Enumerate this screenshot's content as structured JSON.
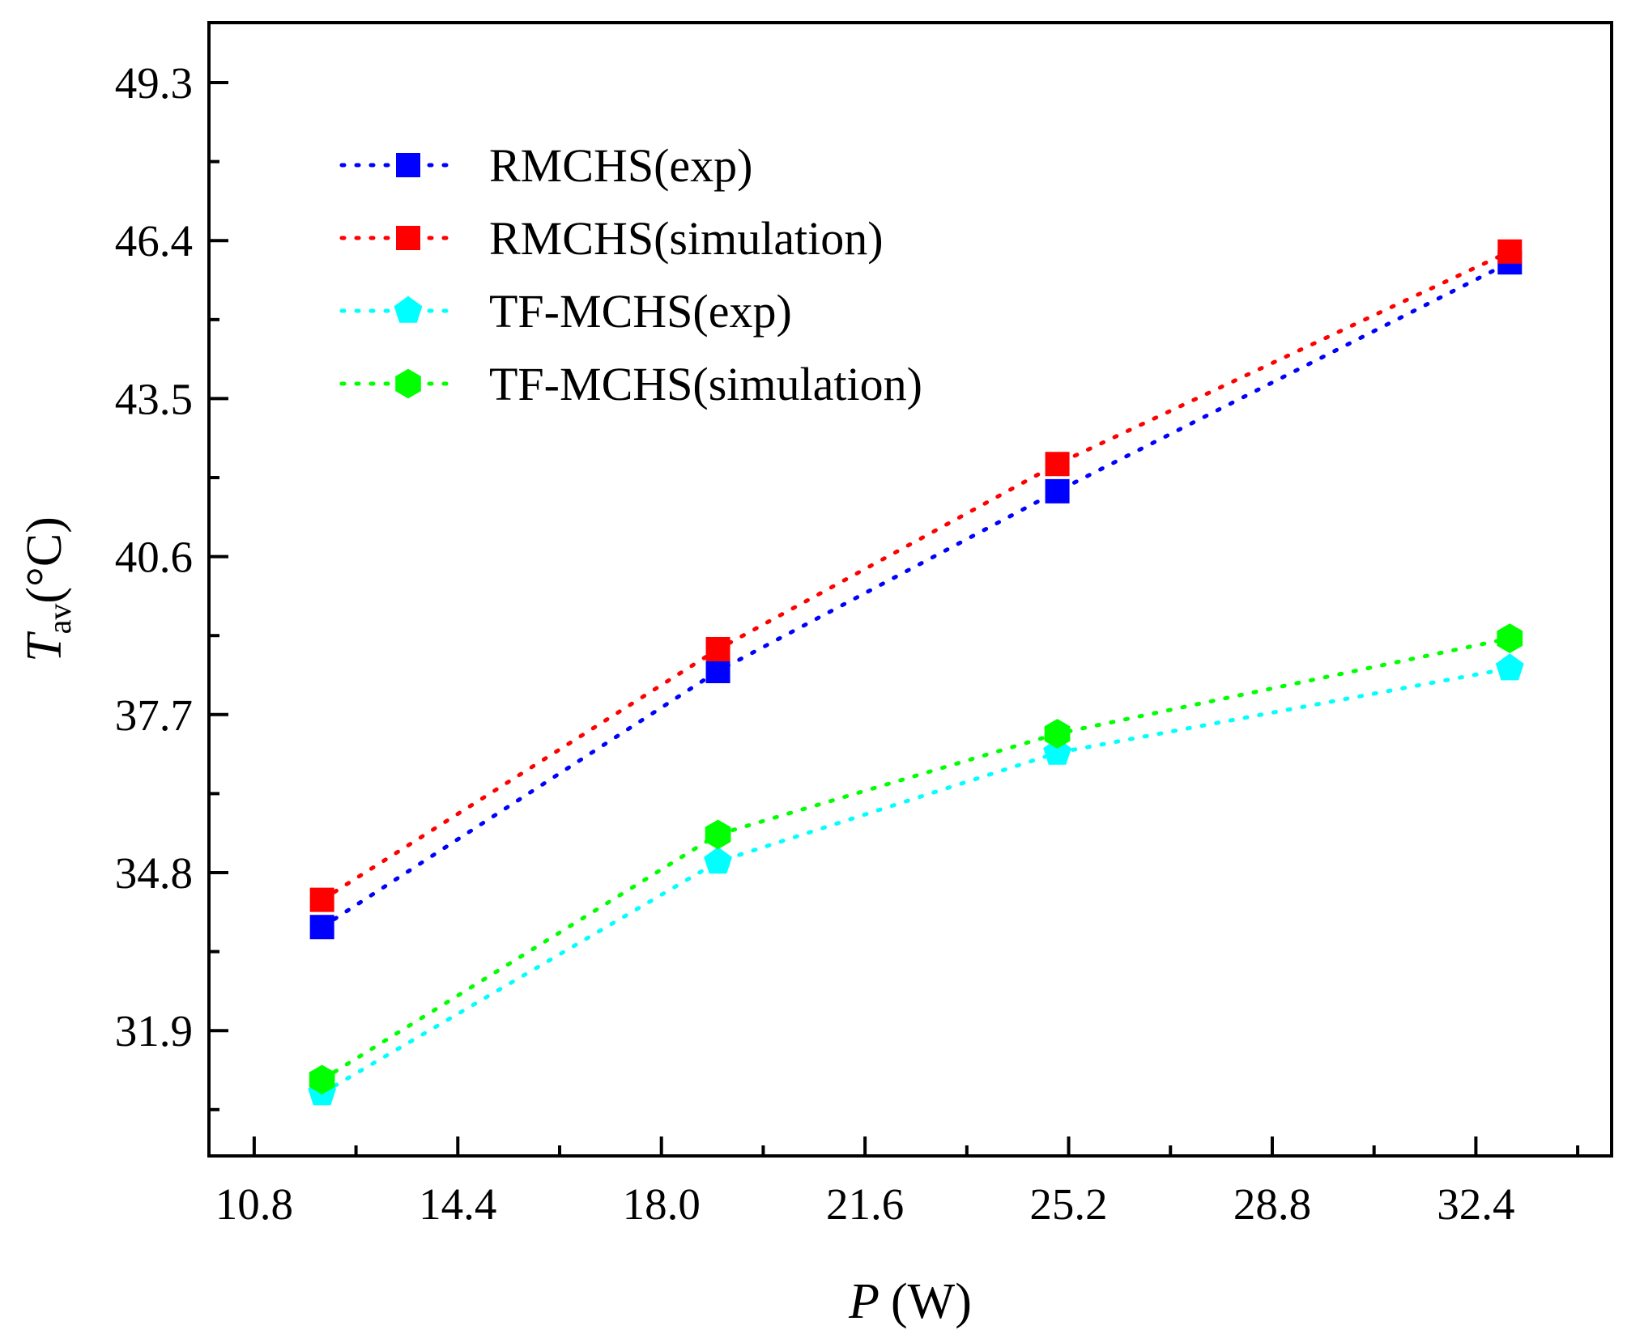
{
  "chart_data": {
    "type": "line",
    "xlabel": "P",
    "xlabel_unit": "(W)",
    "ylabel_symbol": "T",
    "ylabel_sub": "av",
    "ylabel_unit": "(°C)",
    "xlim": [
      10,
      34.8
    ],
    "ylim": [
      29.6,
      50.4
    ],
    "xticks": [
      10.8,
      14.4,
      18.0,
      21.6,
      25.2,
      28.8,
      32.4
    ],
    "xtick_labels": [
      "10.8",
      "14.4",
      "18.0",
      "21.6",
      "25.2",
      "28.8",
      "32.4"
    ],
    "yticks": [
      31.9,
      34.8,
      37.7,
      40.6,
      43.5,
      46.4,
      49.3
    ],
    "ytick_labels": [
      "31.9",
      "34.8",
      "37.7",
      "40.6",
      "43.5",
      "46.4",
      "49.3"
    ],
    "x": [
      12,
      19,
      25,
      33
    ],
    "legend_position": "top-left",
    "series": [
      {
        "name": "RMCHS(exp)",
        "color": "#0000ff",
        "marker": "square",
        "values": [
          33.8,
          38.5,
          41.8,
          46.0
        ]
      },
      {
        "name": "RMCHS(simulation)",
        "color": "#ff0000",
        "marker": "square",
        "values": [
          34.3,
          38.9,
          42.3,
          46.2
        ]
      },
      {
        "name": "TF-MCHS(exp)",
        "color": "#00ffff",
        "marker": "pentagon",
        "values": [
          30.75,
          35.0,
          37.0,
          38.55
        ]
      },
      {
        "name": "TF-MCHS(simulation)",
        "color": "#00ff00",
        "marker": "hexagon",
        "values": [
          31.0,
          35.5,
          37.35,
          39.1
        ]
      }
    ]
  }
}
